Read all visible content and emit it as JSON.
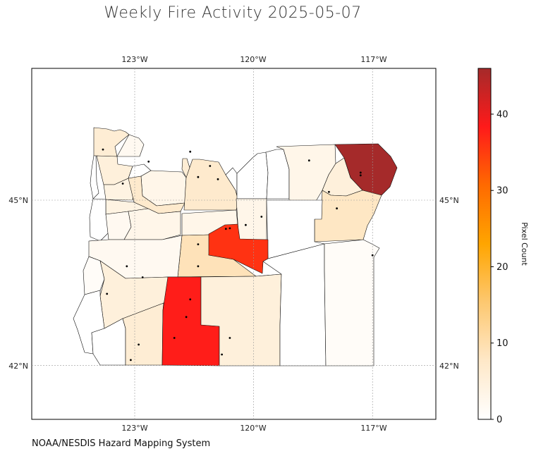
{
  "title": "Weekly Fire Activity 2025-05-07",
  "source": "NOAA/NESDIS Hazard Mapping System",
  "map": {
    "region": "Oregon counties",
    "lon_ticks": [
      "123°W",
      "120°W",
      "117°W"
    ],
    "lat_ticks": [
      "45°N",
      "42°N"
    ],
    "gridlines": true
  },
  "colorbar": {
    "label": "Pixel Count",
    "ticks": [
      "0",
      "10",
      "20",
      "30",
      "40"
    ],
    "range": [
      0,
      46
    ],
    "colors": [
      "#ffffff",
      "#fee8c8",
      "#fdc870",
      "#ffa500",
      "#ff6a00",
      "#ff1a1a",
      "#a52a2a"
    ]
  },
  "counties": [
    {
      "id": "clatsop",
      "count": 6
    },
    {
      "id": "columbia",
      "count": 2
    },
    {
      "id": "tillamook",
      "count": 0
    },
    {
      "id": "washington",
      "count": 5
    },
    {
      "id": "multnomah",
      "count": 0
    },
    {
      "id": "hood-river",
      "count": 6
    },
    {
      "id": "clackamas",
      "count": 3
    },
    {
      "id": "yamhill",
      "count": 4
    },
    {
      "id": "marion",
      "count": 7
    },
    {
      "id": "polk",
      "count": 4
    },
    {
      "id": "lincoln",
      "count": 0
    },
    {
      "id": "benton",
      "count": 2
    },
    {
      "id": "linn",
      "count": 3
    },
    {
      "id": "wasco",
      "count": 7
    },
    {
      "id": "sherman",
      "count": 0
    },
    {
      "id": "gilliam",
      "count": 0
    },
    {
      "id": "morrow",
      "count": 0
    },
    {
      "id": "umatilla",
      "count": 3
    },
    {
      "id": "union",
      "count": 5
    },
    {
      "id": "wallowa",
      "count": 46
    },
    {
      "id": "baker",
      "count": 8
    },
    {
      "id": "jefferson",
      "count": 3
    },
    {
      "id": "wheeler",
      "count": 3
    },
    {
      "id": "grant",
      "count": 0
    },
    {
      "id": "crook",
      "count": 9
    },
    {
      "id": "deschutes",
      "count": 5
    },
    {
      "id": "wheeler-east",
      "count": 36
    },
    {
      "id": "lane",
      "count": 2
    },
    {
      "id": "coos",
      "count": 1
    },
    {
      "id": "douglas",
      "count": 5
    },
    {
      "id": "curry",
      "count": 0
    },
    {
      "id": "josephine",
      "count": 0
    },
    {
      "id": "jackson",
      "count": 6
    },
    {
      "id": "klamath",
      "count": 38
    },
    {
      "id": "lake",
      "count": 5
    },
    {
      "id": "harney",
      "count": 0
    },
    {
      "id": "malheur",
      "count": 1
    }
  ],
  "fire_points": [
    {
      "lon": -123.8,
      "lat": 45.92
    },
    {
      "lon": -123.3,
      "lat": 45.3
    },
    {
      "lon": -122.65,
      "lat": 45.7
    },
    {
      "lon": -121.4,
      "lat": 45.42
    },
    {
      "lon": -121.1,
      "lat": 45.62
    },
    {
      "lon": -120.9,
      "lat": 45.38
    },
    {
      "lon": -121.6,
      "lat": 45.88
    },
    {
      "lon": -118.6,
      "lat": 45.72
    },
    {
      "lon": -118.1,
      "lat": 45.15
    },
    {
      "lon": -117.3,
      "lat": 45.45
    },
    {
      "lon": -117.3,
      "lat": 45.5
    },
    {
      "lon": -117.0,
      "lat": 44.0
    },
    {
      "lon": -117.9,
      "lat": 44.85
    },
    {
      "lon": -120.7,
      "lat": 44.48
    },
    {
      "lon": -120.6,
      "lat": 44.49
    },
    {
      "lon": -120.2,
      "lat": 44.55
    },
    {
      "lon": -119.8,
      "lat": 44.7
    },
    {
      "lon": -121.4,
      "lat": 44.2
    },
    {
      "lon": -121.4,
      "lat": 43.8
    },
    {
      "lon": -123.2,
      "lat": 43.8
    },
    {
      "lon": -122.8,
      "lat": 43.6
    },
    {
      "lon": -121.6,
      "lat": 43.2
    },
    {
      "lon": -121.7,
      "lat": 42.88
    },
    {
      "lon": -120.6,
      "lat": 42.5
    },
    {
      "lon": -122.9,
      "lat": 42.38
    },
    {
      "lon": -123.1,
      "lat": 42.1
    },
    {
      "lon": -120.8,
      "lat": 42.2
    },
    {
      "lon": -123.7,
      "lat": 43.3
    },
    {
      "lon": -122.0,
      "lat": 42.5
    }
  ]
}
